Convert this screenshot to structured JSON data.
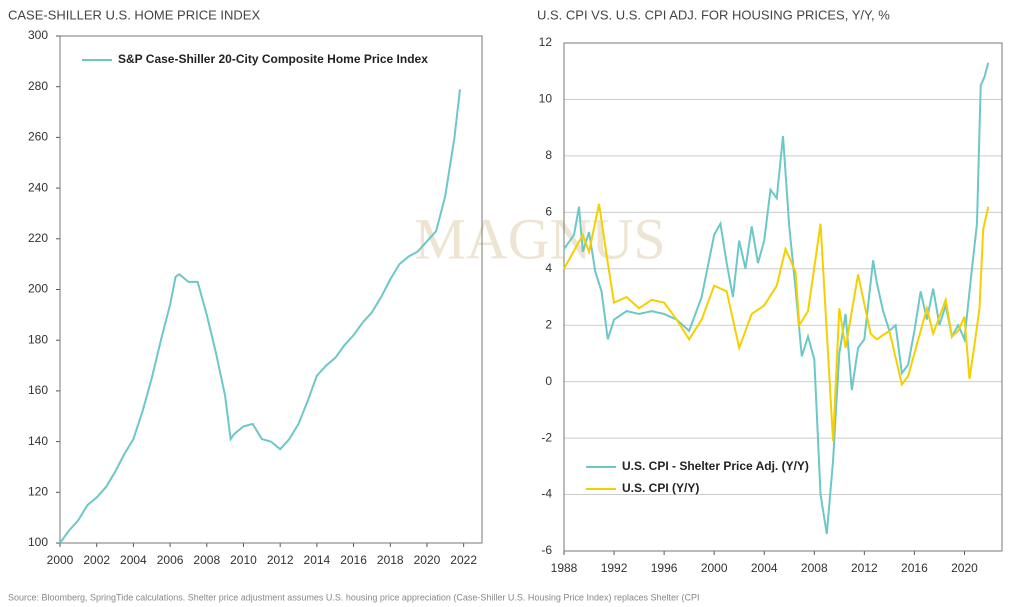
{
  "chart_data": [
    {
      "type": "line",
      "title": "CASE-SHILLER U.S. HOME PRICE INDEX",
      "xlim": [
        2000,
        2023
      ],
      "xticks": [
        2000,
        2002,
        2004,
        2006,
        2008,
        2010,
        2012,
        2014,
        2016,
        2018,
        2020,
        2022
      ],
      "ylim": [
        100,
        300
      ],
      "yticks": [
        100,
        120,
        140,
        160,
        180,
        200,
        220,
        240,
        260,
        280,
        300
      ],
      "grid": false,
      "legend": "upper left",
      "series": [
        {
          "name": "S&P Case-Shiller 20-City Composite Home Price Index",
          "color": "#6cc8c8",
          "x": [
            2000,
            2000.5,
            2001,
            2001.5,
            2002,
            2002.5,
            2003,
            2003.5,
            2004,
            2004.5,
            2005,
            2005.5,
            2006,
            2006.3,
            2006.5,
            2007,
            2007.5,
            2008,
            2008.5,
            2009,
            2009.3,
            2009.5,
            2010,
            2010.5,
            2011,
            2011.5,
            2012,
            2012.5,
            2013,
            2013.5,
            2014,
            2014.5,
            2015,
            2015.5,
            2016,
            2016.5,
            2017,
            2017.5,
            2018,
            2018.5,
            2019,
            2019.5,
            2020,
            2020.5,
            2021,
            2021.5,
            2021.8
          ],
          "values": [
            100,
            105,
            109,
            115,
            118,
            122,
            128,
            135,
            141,
            152,
            165,
            180,
            194,
            205,
            206,
            203,
            203,
            190,
            175,
            158,
            141,
            143,
            146,
            147,
            141,
            140,
            137,
            141,
            147,
            156,
            166,
            170,
            173,
            178,
            182,
            187,
            191,
            197,
            204,
            210,
            213,
            215,
            219,
            223,
            237,
            260,
            279
          ]
        }
      ]
    },
    {
      "type": "line",
      "title": "U.S. CPI VS. U.S. CPI ADJ. FOR HOUSING PRICES, Y/Y, %",
      "xlim": [
        1988,
        2023
      ],
      "xticks": [
        1988,
        1992,
        1996,
        2000,
        2004,
        2008,
        2012,
        2016,
        2020
      ],
      "ylim": [
        -6,
        12
      ],
      "yticks": [
        -6,
        -4,
        -2,
        0,
        2,
        4,
        6,
        8,
        10,
        12
      ],
      "grid": true,
      "legend": "lower left",
      "series": [
        {
          "name": "U.S. CPI - Shelter Price Adj. (Y/Y)",
          "color": "#6cc8c8",
          "x": [
            1988,
            1988.8,
            1989.2,
            1989.5,
            1990,
            1990.5,
            1991,
            1991.5,
            1992,
            1993,
            1994,
            1995,
            1996,
            1997,
            1998,
            1999,
            2000,
            2000.5,
            2001,
            2001.5,
            2002,
            2002.5,
            2003,
            2003.5,
            2004,
            2004.5,
            2005,
            2005.5,
            2006,
            2006.5,
            2007,
            2007.5,
            2008,
            2008.5,
            2009,
            2009.5,
            2010,
            2010.5,
            2011,
            2011.5,
            2012,
            2012.7,
            2013,
            2013.5,
            2014,
            2014.5,
            2015,
            2015.5,
            2016,
            2016.5,
            2017,
            2017.5,
            2018,
            2018.5,
            2019,
            2019.5,
            2020,
            2020.5,
            2021,
            2021.3,
            2021.6,
            2021.9
          ],
          "values": [
            4.7,
            5.2,
            6.2,
            4.6,
            5.3,
            3.9,
            3.2,
            1.5,
            2.2,
            2.5,
            2.4,
            2.5,
            2.4,
            2.2,
            1.8,
            3.0,
            5.2,
            5.6,
            4.2,
            3.0,
            5.0,
            4.0,
            5.5,
            4.2,
            5.0,
            6.8,
            6.5,
            8.7,
            5.5,
            3.3,
            0.9,
            1.6,
            0.8,
            -4.0,
            -5.4,
            -2.8,
            1.0,
            2.4,
            -0.3,
            1.2,
            1.5,
            4.3,
            3.5,
            2.5,
            1.8,
            2.0,
            0.3,
            0.6,
            1.8,
            3.2,
            2.2,
            3.3,
            2.0,
            2.7,
            1.6,
            2.0,
            1.5,
            3.6,
            5.6,
            10.5,
            10.8,
            11.3
          ]
        },
        {
          "name": "U.S. CPI (Y/Y)",
          "color": "#f5d000",
          "x": [
            1988,
            1989,
            1989.5,
            1990,
            1990.8,
            1991.5,
            1992,
            1993,
            1994,
            1995,
            1996,
            1997,
            1998,
            1999,
            2000,
            2001,
            2001.8,
            2002,
            2003,
            2004,
            2005,
            2005.7,
            2006.5,
            2006.8,
            2007.5,
            2008.5,
            2009.5,
            2010,
            2010.5,
            2011.5,
            2012.5,
            2013,
            2014,
            2015,
            2015.5,
            2016,
            2016.5,
            2017,
            2017.5,
            2018.5,
            2019,
            2019.5,
            2020,
            2020.4,
            2020.8,
            2021.2,
            2021.5,
            2021.9
          ],
          "values": [
            4.0,
            4.8,
            5.2,
            4.6,
            6.3,
            4.2,
            2.8,
            3.0,
            2.6,
            2.9,
            2.8,
            2.2,
            1.5,
            2.2,
            3.4,
            3.2,
            1.6,
            1.2,
            2.4,
            2.7,
            3.4,
            4.7,
            3.9,
            2.0,
            2.5,
            5.6,
            -2.1,
            2.6,
            1.2,
            3.8,
            1.7,
            1.5,
            1.8,
            -0.1,
            0.2,
            1.0,
            1.8,
            2.6,
            1.7,
            2.9,
            1.6,
            1.8,
            2.3,
            0.1,
            1.3,
            2.6,
            5.4,
            6.2
          ]
        }
      ]
    }
  ],
  "watermark": "MAGNUS",
  "source": "Source: Bloomberg, SpringTide calculations. Shelter price adjustment assumes U.S. housing price appreciation (Case-Shiller U.S. Housing Price Index) replaces Shelter (CPI"
}
